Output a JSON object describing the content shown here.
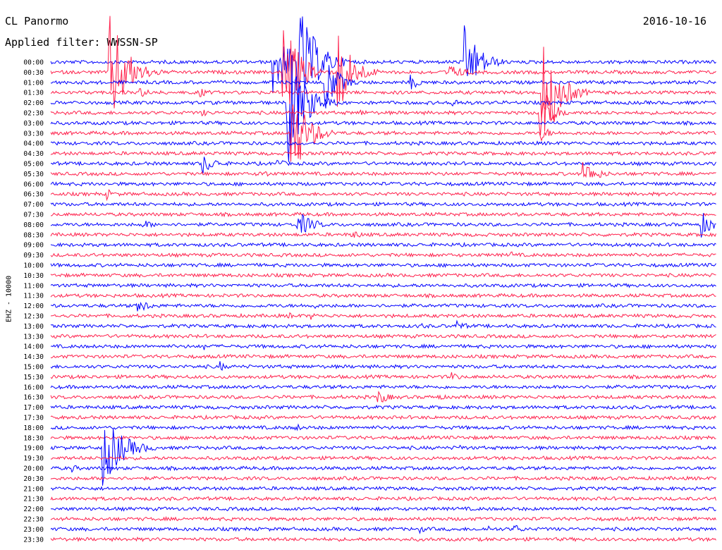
{
  "header": {
    "station": "CL Panormo",
    "date": "2016-10-16",
    "filter": "Applied filter: WWSSN-SP",
    "channel": "EHZ - 10000"
  },
  "colors": {
    "trace_a": "#0000ff",
    "trace_b": "#ff1f4b",
    "text": "#000000",
    "background": "#ffffff"
  },
  "chart_data": {
    "type": "line",
    "title": "CL Panormo",
    "subtitle": "Applied filter: WWSSN-SP",
    "ylabel": "EHZ - 10000",
    "rows": [
      "00:00",
      "00:30",
      "01:00",
      "01:30",
      "02:00",
      "02:30",
      "03:00",
      "03:30",
      "04:00",
      "04:30",
      "05:00",
      "05:30",
      "06:00",
      "06:30",
      "07:00",
      "07:30",
      "08:00",
      "08:30",
      "09:00",
      "09:30",
      "10:00",
      "10:30",
      "11:00",
      "11:30",
      "12:00",
      "12:30",
      "13:00",
      "13:30",
      "14:00",
      "14:30",
      "15:00",
      "15:30",
      "16:00",
      "16:30",
      "17:00",
      "17:30",
      "18:00",
      "18:30",
      "19:00",
      "19:30",
      "20:00",
      "20:30",
      "21:00",
      "21:30",
      "22:00",
      "22:30",
      "23:00",
      "23:30"
    ],
    "row_colors": "alternating blue / red",
    "x_unit": "minutes within 30-minute row",
    "xlim": [
      0,
      30
    ],
    "events": [
      {
        "row": 1,
        "t": 2.6,
        "amp": 95,
        "dur": 1.6
      },
      {
        "row": 3,
        "t": 4.0,
        "amp": 8,
        "dur": 1.2
      },
      {
        "row": 3,
        "t": 6.7,
        "amp": 8,
        "dur": 1.0
      },
      {
        "row": 5,
        "t": 6.8,
        "amp": 6,
        "dur": 0.8
      },
      {
        "row": 0,
        "t": 10.0,
        "amp": 60,
        "dur": 1.5
      },
      {
        "row": 1,
        "t": 10.4,
        "amp": 90,
        "dur": 1.5
      },
      {
        "row": 0,
        "t": 11.1,
        "amp": 95,
        "dur": 1.7
      },
      {
        "row": 4,
        "t": 10.6,
        "amp": 110,
        "dur": 1.5
      },
      {
        "row": 7,
        "t": 10.8,
        "amp": 75,
        "dur": 1.5
      },
      {
        "row": 2,
        "t": 12.3,
        "amp": 50,
        "dur": 1.2
      },
      {
        "row": 1,
        "t": 12.9,
        "amp": 70,
        "dur": 1.4
      },
      {
        "row": 2,
        "t": 16.2,
        "amp": 12,
        "dur": 1.0
      },
      {
        "row": 5,
        "t": 13.9,
        "amp": 6,
        "dur": 0.9
      },
      {
        "row": 1,
        "t": 17.8,
        "amp": 12,
        "dur": 2.0
      },
      {
        "row": 0,
        "t": 18.6,
        "amp": 55,
        "dur": 1.5
      },
      {
        "row": 4,
        "t": 18.0,
        "amp": 10,
        "dur": 1.0
      },
      {
        "row": 3,
        "t": 22.1,
        "amp": 80,
        "dur": 1.6
      },
      {
        "row": 5,
        "t": 22.0,
        "amp": 60,
        "dur": 1.0
      },
      {
        "row": 7,
        "t": 22.0,
        "amp": 14,
        "dur": 1.0
      },
      {
        "row": 10,
        "t": 6.8,
        "amp": 16,
        "dur": 1.4
      },
      {
        "row": 11,
        "t": 9.4,
        "amp": 8,
        "dur": 1.0
      },
      {
        "row": 10,
        "t": 10.2,
        "amp": 7,
        "dur": 1.0
      },
      {
        "row": 11,
        "t": 23.9,
        "amp": 20,
        "dur": 1.5
      },
      {
        "row": 13,
        "t": 2.5,
        "amp": 10,
        "dur": 0.6
      },
      {
        "row": 16,
        "t": 4.1,
        "amp": 8,
        "dur": 1.2
      },
      {
        "row": 16,
        "t": 11.1,
        "amp": 20,
        "dur": 1.5
      },
      {
        "row": 16,
        "t": 29.3,
        "amp": 20,
        "dur": 1.2
      },
      {
        "row": 17,
        "t": 13.5,
        "amp": 9,
        "dur": 1.0
      },
      {
        "row": 19,
        "t": 20.7,
        "amp": 6,
        "dur": 0.8
      },
      {
        "row": 24,
        "t": 3.9,
        "amp": 12,
        "dur": 1.2
      },
      {
        "row": 24,
        "t": 11.7,
        "amp": 10,
        "dur": 0.5
      },
      {
        "row": 25,
        "t": 10.7,
        "amp": 7,
        "dur": 0.6
      },
      {
        "row": 25,
        "t": 11.6,
        "amp": 7,
        "dur": 1.0
      },
      {
        "row": 26,
        "t": 16.6,
        "amp": 8,
        "dur": 0.6
      },
      {
        "row": 26,
        "t": 18.3,
        "amp": 8,
        "dur": 1.2
      },
      {
        "row": 28,
        "t": 6.9,
        "amp": 6,
        "dur": 0.3
      },
      {
        "row": 30,
        "t": 7.6,
        "amp": 9,
        "dur": 0.6
      },
      {
        "row": 31,
        "t": 18.0,
        "amp": 8,
        "dur": 1.0
      },
      {
        "row": 33,
        "t": 14.7,
        "amp": 12,
        "dur": 1.2
      },
      {
        "row": 33,
        "t": 17.4,
        "amp": 6,
        "dur": 0.8
      },
      {
        "row": 36,
        "t": 11.0,
        "amp": 7,
        "dur": 0.8
      },
      {
        "row": 38,
        "t": 2.3,
        "amp": 60,
        "dur": 1.8
      },
      {
        "row": 38,
        "t": 18.4,
        "amp": 6,
        "dur": 0.8
      },
      {
        "row": 40,
        "t": 0.9,
        "amp": 7,
        "dur": 0.8
      },
      {
        "row": 40,
        "t": 8.2,
        "amp": 5,
        "dur": 0.2
      },
      {
        "row": 43,
        "t": 19.6,
        "amp": 8,
        "dur": 0.3
      },
      {
        "row": 46,
        "t": 16.5,
        "amp": 8,
        "dur": 0.9
      },
      {
        "row": 46,
        "t": 19.7,
        "amp": 7,
        "dur": 0.3
      },
      {
        "row": 46,
        "t": 20.8,
        "amp": 9,
        "dur": 1.0
      }
    ]
  }
}
